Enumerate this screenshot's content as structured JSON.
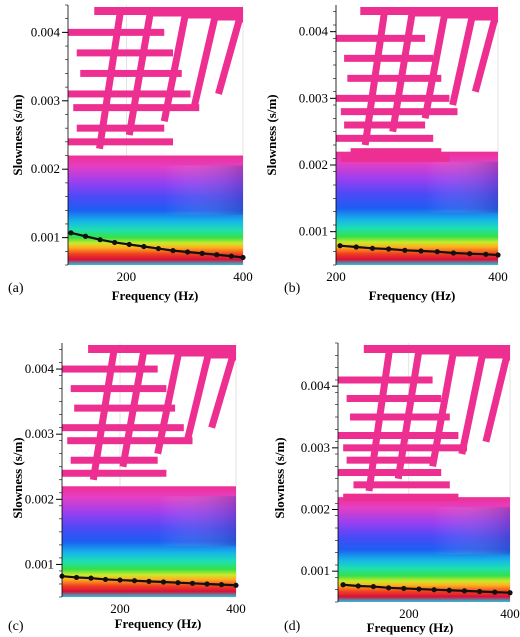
{
  "figure": {
    "panels": [
      "(a)",
      "(b)",
      "(c)",
      "(d)"
    ]
  },
  "colors": {
    "pink": "#ee2f92",
    "dispersion_curve": "#111111",
    "grid": "#d0d0d0"
  },
  "chart_data": [
    {
      "type": "heatmap",
      "panel_label": "(a)",
      "xlabel": "Frequency (Hz)",
      "ylabel": "Slowness (s/m)",
      "xlim": [
        100,
        400
      ],
      "ylim": [
        0.0006,
        0.0044
      ],
      "x_ticks": [
        200,
        400
      ],
      "x_tick_labels": [
        "200",
        "400"
      ],
      "y_ticks": [
        0.001,
        0.002,
        0.003,
        0.004
      ],
      "y_tick_labels": [
        "0.001",
        "0.002",
        "0.003",
        "0.004"
      ],
      "colormap": "rainbow",
      "series": [
        {
          "x": [
            105,
            130,
            155,
            180,
            205,
            230,
            255,
            280,
            305,
            330,
            355,
            380,
            400
          ],
          "y": [
            0.00107,
            0.00102,
            0.00097,
            0.00093,
            0.0009,
            0.00087,
            0.00084,
            0.00081,
            0.00079,
            0.00077,
            0.00075,
            0.00073,
            0.00071
          ]
        }
      ]
    },
    {
      "type": "heatmap",
      "panel_label": "(b)",
      "xlabel": "Frequency (Hz)",
      "ylabel": "Slowness (s/m)",
      "xlim": [
        200,
        400
      ],
      "ylim": [
        0.0005,
        0.0044
      ],
      "x_ticks": [
        200,
        400
      ],
      "x_tick_labels": [
        "200",
        "400"
      ],
      "y_ticks": [
        0.001,
        0.002,
        0.003,
        0.004
      ],
      "y_tick_labels": [
        "0.001",
        "0.002",
        "0.003",
        "0.004"
      ],
      "colormap": "rainbow",
      "series": [
        {
          "x": [
            205,
            225,
            245,
            265,
            285,
            305,
            325,
            345,
            365,
            385,
            400
          ],
          "y": [
            0.00079,
            0.00077,
            0.00075,
            0.00074,
            0.00072,
            0.00071,
            0.0007,
            0.00068,
            0.00067,
            0.00066,
            0.00065
          ]
        }
      ]
    },
    {
      "type": "heatmap",
      "panel_label": "(c)",
      "xlabel": "Frequency (Hz)",
      "ylabel": "Slowness (s/m)",
      "xlim": [
        100,
        400
      ],
      "ylim": [
        0.0005,
        0.0044
      ],
      "x_ticks": [
        200,
        400
      ],
      "x_tick_labels": [
        "200",
        "400"
      ],
      "y_ticks": [
        0.001,
        0.002,
        0.003,
        0.004
      ],
      "y_tick_labels": [
        "0.001",
        "0.002",
        "0.003",
        "0.004"
      ],
      "colormap": "rainbow",
      "series": [
        {
          "x": [
            100,
            125,
            150,
            175,
            200,
            225,
            250,
            275,
            300,
            325,
            350,
            375,
            400
          ],
          "y": [
            0.00082,
            0.0008,
            0.00079,
            0.00077,
            0.00076,
            0.00075,
            0.00074,
            0.00073,
            0.00072,
            0.00071,
            0.0007,
            0.00069,
            0.00068
          ]
        }
      ]
    },
    {
      "type": "heatmap",
      "panel_label": "(d)",
      "xlabel": "Frequency (Hz)",
      "ylabel": "Slowness (s/m)",
      "xlim": [
        60,
        400
      ],
      "ylim": [
        0.0005,
        0.0047
      ],
      "x_ticks": [
        200,
        400
      ],
      "x_tick_labels": [
        "200",
        "400"
      ],
      "y_ticks": [
        0.001,
        0.002,
        0.003,
        0.004
      ],
      "y_tick_labels": [
        "0.001",
        "0.002",
        "0.003",
        "0.004"
      ],
      "colormap": "rainbow",
      "series": [
        {
          "x": [
            70,
            100,
            130,
            160,
            190,
            220,
            250,
            280,
            310,
            340,
            370,
            400
          ],
          "y": [
            0.00078,
            0.00076,
            0.00075,
            0.00073,
            0.00072,
            0.00071,
            0.0007,
            0.00069,
            0.00068,
            0.00067,
            0.00066,
            0.00065
          ]
        }
      ]
    }
  ]
}
